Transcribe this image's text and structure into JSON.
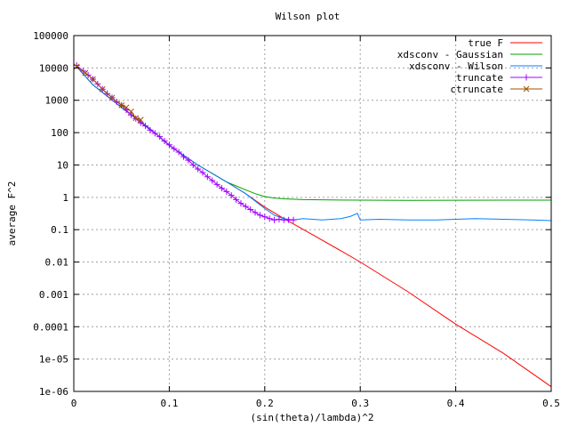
{
  "chart_data": {
    "type": "line",
    "title": "Wilson plot",
    "xlabel": "(sin(theta)/lambda)^2",
    "ylabel": "average F^2",
    "xlim": [
      0,
      0.5
    ],
    "ylim": [
      1e-06,
      100000
    ],
    "yscale": "log",
    "grid": true,
    "legend_position": "top-right",
    "x_ticks": [
      {
        "value": 0,
        "label": "0"
      },
      {
        "value": 0.1,
        "label": "0.1"
      },
      {
        "value": 0.2,
        "label": "0.2"
      },
      {
        "value": 0.3,
        "label": "0.3"
      },
      {
        "value": 0.4,
        "label": "0.4"
      },
      {
        "value": 0.5,
        "label": "0.5"
      }
    ],
    "y_ticks": [
      {
        "value": 100000,
        "label": "100000"
      },
      {
        "value": 10000,
        "label": "10000"
      },
      {
        "value": 1000,
        "label": "1000"
      },
      {
        "value": 100,
        "label": "100"
      },
      {
        "value": 10,
        "label": "10"
      },
      {
        "value": 1,
        "label": "1"
      },
      {
        "value": 0.1,
        "label": "0.1"
      },
      {
        "value": 0.01,
        "label": "0.01"
      },
      {
        "value": 0.001,
        "label": "0.001"
      },
      {
        "value": 0.0001,
        "label": "0.0001"
      },
      {
        "value": 1e-05,
        "label": "1e-05"
      },
      {
        "value": 1e-06,
        "label": "1e-06"
      }
    ],
    "series": [
      {
        "name": "true F",
        "color": "#ff0000",
        "marker": "none",
        "x": [
          0.003,
          0.02,
          0.05,
          0.08,
          0.1,
          0.13,
          0.16,
          0.18,
          0.2,
          0.22,
          0.25,
          0.28,
          0.3,
          0.35,
          0.4,
          0.45,
          0.5
        ],
        "y": [
          11000,
          3000,
          600,
          130,
          40,
          10,
          3,
          1.3,
          0.5,
          0.22,
          0.07,
          0.022,
          0.01,
          0.0012,
          0.00012,
          1.5e-05,
          1.4e-06
        ]
      },
      {
        "name": "xdsconv - Gaussian",
        "color": "#00a000",
        "marker": "none",
        "x": [
          0.003,
          0.02,
          0.05,
          0.08,
          0.1,
          0.13,
          0.16,
          0.18,
          0.19,
          0.2,
          0.21,
          0.22,
          0.24,
          0.27,
          0.3,
          0.35,
          0.4,
          0.45,
          0.5
        ],
        "y": [
          11000,
          3000,
          600,
          130,
          40,
          10,
          3,
          1.7,
          1.3,
          1.05,
          0.95,
          0.9,
          0.85,
          0.83,
          0.82,
          0.8,
          0.81,
          0.82,
          0.82
        ]
      },
      {
        "name": "xdsconv - Wilson",
        "color": "#0080ff",
        "marker": "none",
        "x": [
          0.003,
          0.02,
          0.05,
          0.08,
          0.1,
          0.13,
          0.16,
          0.18,
          0.2,
          0.21,
          0.22,
          0.23,
          0.24,
          0.26,
          0.28,
          0.29,
          0.297,
          0.3,
          0.32,
          0.35,
          0.38,
          0.4,
          0.42,
          0.45,
          0.48,
          0.5
        ],
        "y": [
          11000,
          3000,
          600,
          130,
          40,
          10,
          3,
          1.3,
          0.45,
          0.28,
          0.22,
          0.2,
          0.22,
          0.2,
          0.22,
          0.26,
          0.32,
          0.2,
          0.21,
          0.2,
          0.2,
          0.21,
          0.22,
          0.21,
          0.2,
          0.19
        ]
      },
      {
        "name": "truncate",
        "color": "#a000ff",
        "marker": "plus",
        "x": [
          0.003,
          0.01,
          0.015,
          0.02,
          0.025,
          0.03,
          0.035,
          0.04,
          0.045,
          0.05,
          0.055,
          0.06,
          0.065,
          0.07,
          0.075,
          0.08,
          0.085,
          0.09,
          0.095,
          0.1,
          0.105,
          0.11,
          0.115,
          0.12,
          0.125,
          0.13,
          0.135,
          0.14,
          0.145,
          0.15,
          0.155,
          0.16,
          0.165,
          0.17,
          0.175,
          0.18,
          0.185,
          0.19,
          0.195,
          0.2,
          0.205,
          0.21,
          0.215,
          0.22,
          0.225,
          0.23
        ],
        "y": [
          12000,
          8000,
          6000,
          4500,
          3200,
          2200,
          1600,
          1200,
          900,
          700,
          500,
          350,
          270,
          200,
          160,
          120,
          95,
          75,
          55,
          42,
          32,
          25,
          18,
          14,
          10,
          7.5,
          5.8,
          4.3,
          3.3,
          2.5,
          1.9,
          1.5,
          1.15,
          0.85,
          0.65,
          0.52,
          0.42,
          0.34,
          0.28,
          0.25,
          0.22,
          0.2,
          0.21,
          0.2,
          0.2,
          0.2
        ]
      },
      {
        "name": "ctruncate",
        "color": "#a05000",
        "marker": "cross",
        "x": [
          0.003,
          0.012,
          0.02,
          0.03,
          0.04,
          0.05,
          0.055,
          0.06,
          0.065,
          0.07
        ],
        "y": [
          11000,
          7000,
          4500,
          2200,
          1200,
          700,
          600,
          450,
          280,
          250
        ]
      }
    ]
  }
}
